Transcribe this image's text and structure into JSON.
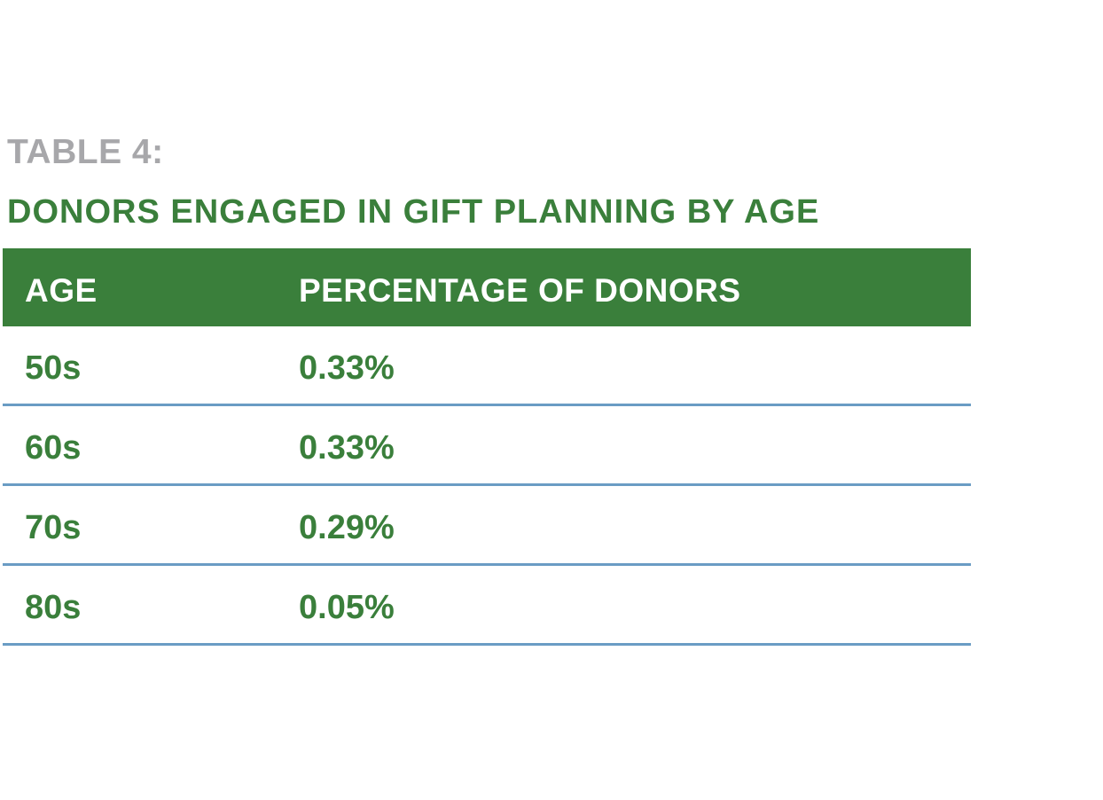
{
  "table_label": "TABLE 4:",
  "title": "DONORS ENGAGED IN GIFT PLANNING BY AGE",
  "columns": [
    "AGE",
    "PERCENTAGE OF DONORS"
  ],
  "rows": [
    [
      "50s",
      "0.33%"
    ],
    [
      "60s",
      "0.33%"
    ],
    [
      "70s",
      "0.29%"
    ],
    [
      "80s",
      "0.05%"
    ]
  ],
  "colors": {
    "green": "#3a7f3b",
    "grey": "#a7a7aa",
    "rule_blue": "#6a9cc4"
  }
}
